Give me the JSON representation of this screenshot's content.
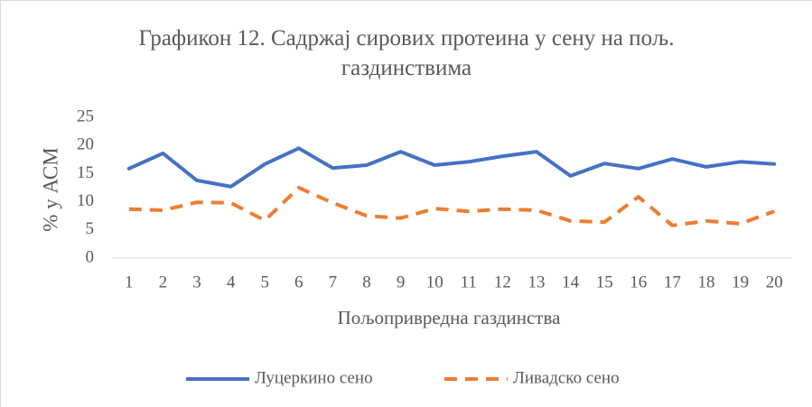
{
  "chart_data": {
    "type": "line",
    "title": "Графикон 12. Садржај сирових протеина у сену на пољ. газдинствима",
    "x_label": "Пољопривредна газдинства",
    "y_label": "%  у  АСМ",
    "categories": [
      "1",
      "2",
      "3",
      "4",
      "5",
      "6",
      "7",
      "8",
      "9",
      "10",
      "11",
      "12",
      "13",
      "14",
      "15",
      "16",
      "17",
      "18",
      "19",
      "20"
    ],
    "series": [
      {
        "name": "Луцеркино сено",
        "color": "#4472c4",
        "dash": "solid",
        "values": [
          15.9,
          18.6,
          13.8,
          12.7,
          16.7,
          19.5,
          16.0,
          16.5,
          18.9,
          16.5,
          17.1,
          18.1,
          18.9,
          14.6,
          16.8,
          15.9,
          17.6,
          16.2,
          17.1,
          16.7
        ]
      },
      {
        "name": "Ливадско сено",
        "color": "#ed7d31",
        "dash": "dashed",
        "values": [
          8.7,
          8.5,
          9.9,
          9.8,
          6.7,
          12.5,
          9.8,
          7.5,
          7.1,
          8.8,
          8.3,
          8.7,
          8.5,
          6.6,
          6.4,
          10.9,
          5.8,
          6.6,
          6.1,
          8.3
        ]
      }
    ],
    "ylim": [
      0,
      25
    ],
    "yticks": [
      0,
      5,
      10,
      15,
      20,
      25
    ],
    "grid": false,
    "legend": "bottom"
  }
}
